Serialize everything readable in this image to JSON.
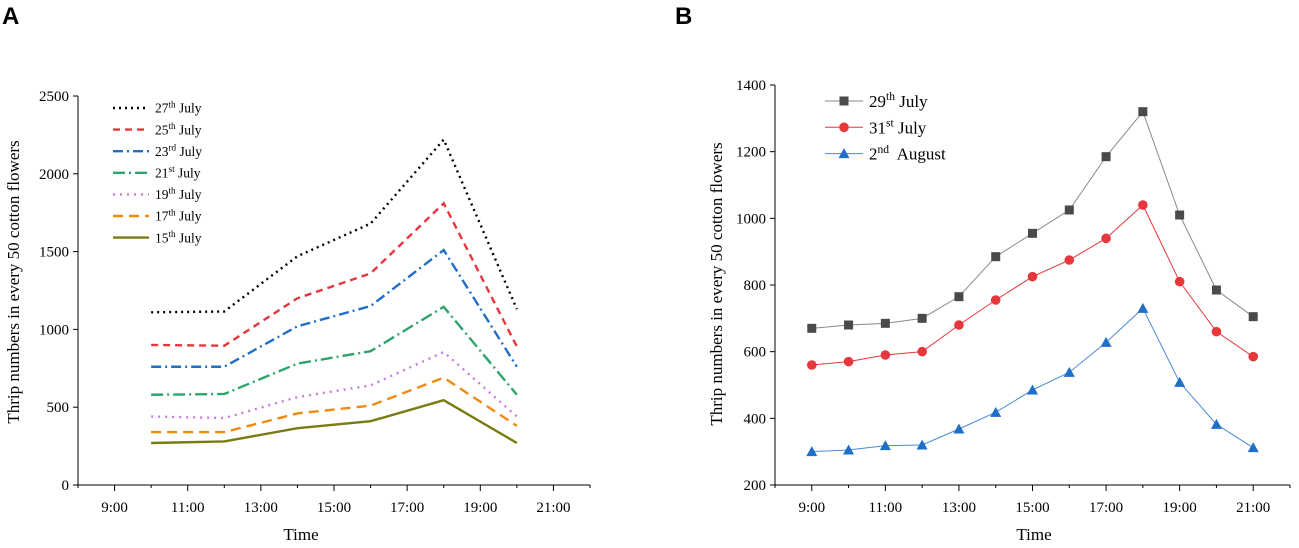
{
  "chart_data": [
    {
      "panel_label": "A",
      "type": "line",
      "xlabel": "Time",
      "ylabel": "Thrip numbers in every 50 cotton flowers",
      "x_ticks": [
        "9:00",
        "11:00",
        "13:00",
        "15:00",
        "17:00",
        "19:00",
        "21:00"
      ],
      "x_tick_values": [
        9,
        11,
        13,
        15,
        17,
        19,
        21
      ],
      "xlim": [
        8,
        22
      ],
      "y_ticks": [
        "0",
        "500",
        "1000",
        "1500",
        "2000",
        "2500"
      ],
      "ylim": [
        0,
        2500
      ],
      "x": [
        10,
        12,
        14,
        16,
        18,
        20
      ],
      "legend_position": "top-left",
      "series": [
        {
          "name_main": "27",
          "name_sup": "th",
          "name_rest": " July",
          "color": "#000000",
          "dash": "2,4",
          "values": [
            1110,
            1115,
            1470,
            1680,
            2220,
            1130
          ]
        },
        {
          "name_main": "25",
          "name_sup": "th",
          "name_rest": " July",
          "color": "#e8373c",
          "dash": "7,5",
          "values": [
            900,
            895,
            1200,
            1360,
            1810,
            890
          ]
        },
        {
          "name_main": "23",
          "name_sup": "rd",
          "name_rest": " July",
          "color": "#1f6fc8",
          "dash": "10,4,2,4",
          "values": [
            760,
            760,
            1020,
            1150,
            1510,
            760
          ]
        },
        {
          "name_main": "21",
          "name_sup": "st",
          "name_rest": " July",
          "color": "#2ea56b",
          "dash": "12,4,2,4",
          "values": [
            580,
            585,
            780,
            860,
            1145,
            580
          ]
        },
        {
          "name_main": "19",
          "name_sup": "th",
          "name_rest": " July",
          "color": "#c77be0",
          "dash": "2,5",
          "values": [
            440,
            430,
            565,
            640,
            855,
            440
          ]
        },
        {
          "name_main": "17",
          "name_sup": "th",
          "name_rest": " July",
          "color": "#f08a12",
          "dash": "10,6",
          "values": [
            340,
            340,
            460,
            510,
            690,
            380
          ]
        },
        {
          "name_main": "15",
          "name_sup": "th",
          "name_rest": " July",
          "color": "#7a7a12",
          "dash": "",
          "values": [
            270,
            280,
            365,
            410,
            545,
            270
          ]
        }
      ]
    },
    {
      "panel_label": "B",
      "type": "line",
      "xlabel": "Time",
      "ylabel": "Thrip numbers in every 50 cotton flowers",
      "x_ticks": [
        "9:00",
        "11:00",
        "13:00",
        "15:00",
        "17:00",
        "19:00",
        "21:00"
      ],
      "x_tick_values": [
        9,
        11,
        13,
        15,
        17,
        19,
        21
      ],
      "xlim": [
        8,
        22
      ],
      "y_ticks": [
        "200",
        "400",
        "600",
        "800",
        "1000",
        "1200",
        "1400"
      ],
      "ylim": [
        200,
        1400
      ],
      "x": [
        9,
        10,
        11,
        12,
        13,
        14,
        15,
        16,
        17,
        18,
        19,
        20,
        21
      ],
      "legend_position": "top-left",
      "series": [
        {
          "name_main": "29",
          "name_sup": "th",
          "name_rest": " July",
          "marker": "square",
          "color": "#4a4a4a",
          "line_color": "#8a8a8a",
          "values": [
            670,
            680,
            685,
            700,
            765,
            885,
            955,
            1025,
            1185,
            1320,
            1010,
            785,
            705
          ]
        },
        {
          "name_main": "31",
          "name_sup": "st",
          "name_rest": " July",
          "marker": "circle",
          "color": "#e8373c",
          "line_color": "#e8373c",
          "values": [
            560,
            570,
            590,
            600,
            680,
            755,
            825,
            875,
            940,
            1040,
            810,
            660,
            585
          ]
        },
        {
          "name_main": "2",
          "name_sup": "nd",
          "name_rest": "  August",
          "marker": "triangle",
          "color": "#1f6fc8",
          "line_color": "#4a8ad8",
          "values": [
            300,
            305,
            318,
            320,
            368,
            418,
            485,
            538,
            628,
            730,
            508,
            382,
            312
          ]
        }
      ]
    }
  ]
}
